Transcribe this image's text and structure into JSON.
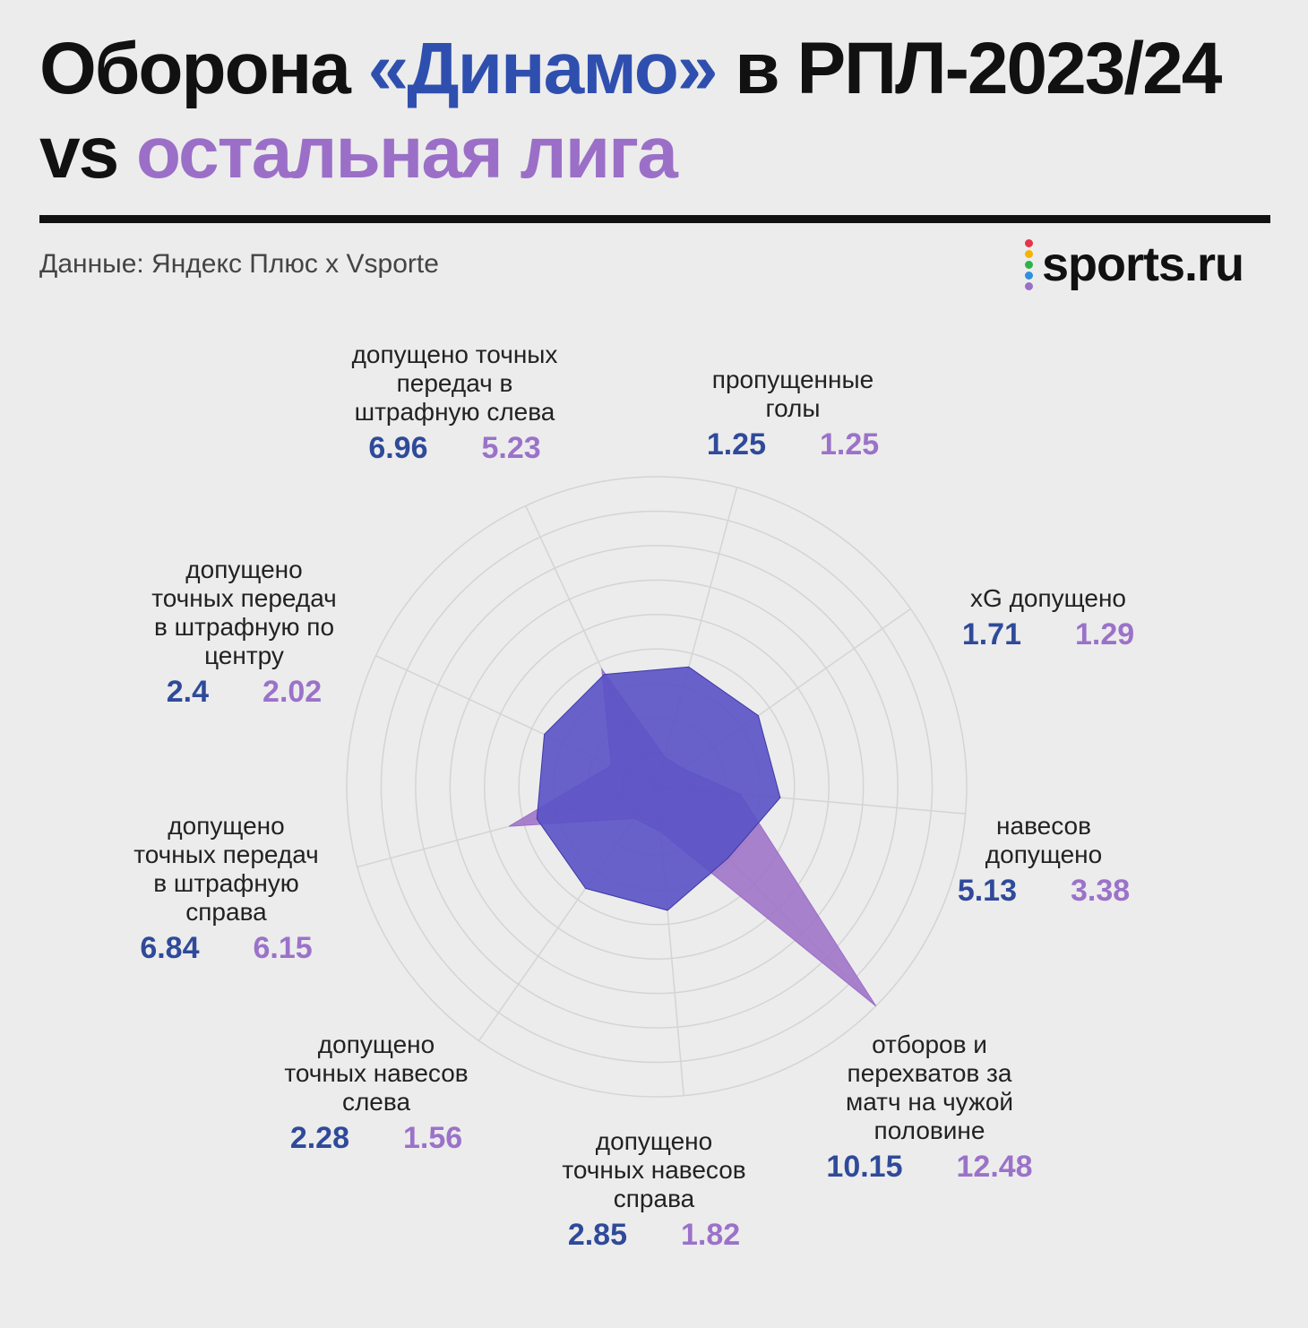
{
  "header": {
    "title_part1": "Оборона ",
    "title_team": "«Динамо»",
    "title_part2": " в РПЛ-2023/24",
    "title_line2_vs": "vs ",
    "title_line2_league": "остальная лига",
    "source": "Данные: Яндекс Плюс x Vsporte",
    "logo": "sports.ru"
  },
  "colors": {
    "dynamo": "#2f4faf",
    "league": "#9b6fc7",
    "grid": "#d4d4d4",
    "logo_dots": [
      "#e8334a",
      "#f5b400",
      "#2db34a",
      "#2f8fe0",
      "#9b6fc7"
    ]
  },
  "chart_data": {
    "type": "radar",
    "title": "Оборона «Динамо» в РПЛ-2023/24 vs остальная лига",
    "axes": [
      "пропущенные голы",
      "xG допущено",
      "навесов допущено",
      "отборов и перехватов за матч на чужой половине",
      "допущено точных навесов справа",
      "допущено точных навесов слева",
      "допущено точных передач в штрафную справа",
      "допущено точных передач в штрафную по центру",
      "допущено точных передач в штрафную слева"
    ],
    "series": [
      {
        "name": "«Динамо»",
        "values": [
          1.25,
          1.71,
          5.13,
          10.15,
          2.85,
          2.28,
          6.84,
          2.4,
          6.96
        ]
      },
      {
        "name": "остальная лига",
        "values": [
          1.25,
          1.29,
          3.38,
          12.48,
          1.82,
          1.56,
          6.15,
          2.02,
          5.23
        ]
      }
    ],
    "value_labels": [
      [
        "1.25",
        "1.25"
      ],
      [
        "1.71",
        "1.29"
      ],
      [
        "5.13",
        "3.38"
      ],
      [
        "10.15",
        "12.48"
      ],
      [
        "2.85",
        "1.82"
      ],
      [
        "2.28",
        "1.56"
      ],
      [
        "6.84",
        "6.15"
      ],
      [
        "2.4",
        "2.02"
      ],
      [
        "6.96",
        "5.23"
      ]
    ],
    "rings": 9,
    "grid": true
  }
}
